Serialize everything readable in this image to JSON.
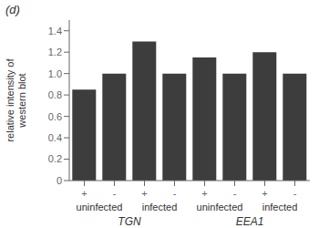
{
  "chart_data": {
    "type": "bar",
    "title": "(d)",
    "ylabel": "relative intensity of\nwestern blot",
    "categories": [
      "+",
      "-",
      "+",
      "-",
      "+",
      "-",
      "+",
      "-"
    ],
    "values": [
      0.85,
      1.0,
      1.3,
      1.0,
      1.15,
      1.0,
      1.2,
      1.0
    ],
    "color": "#3d3d3d",
    "ylim": [
      0,
      1.5
    ],
    "yticks": [
      0,
      0.2,
      0.4,
      0.6,
      0.8,
      {
        "value": 1.0,
        "label": "1.0"
      },
      1.2,
      1.4
    ],
    "annotations": [
      "uninfected",
      "infected",
      "uninfected",
      "infected",
      "TGN",
      "EEA1"
    ],
    "grid": false
  }
}
